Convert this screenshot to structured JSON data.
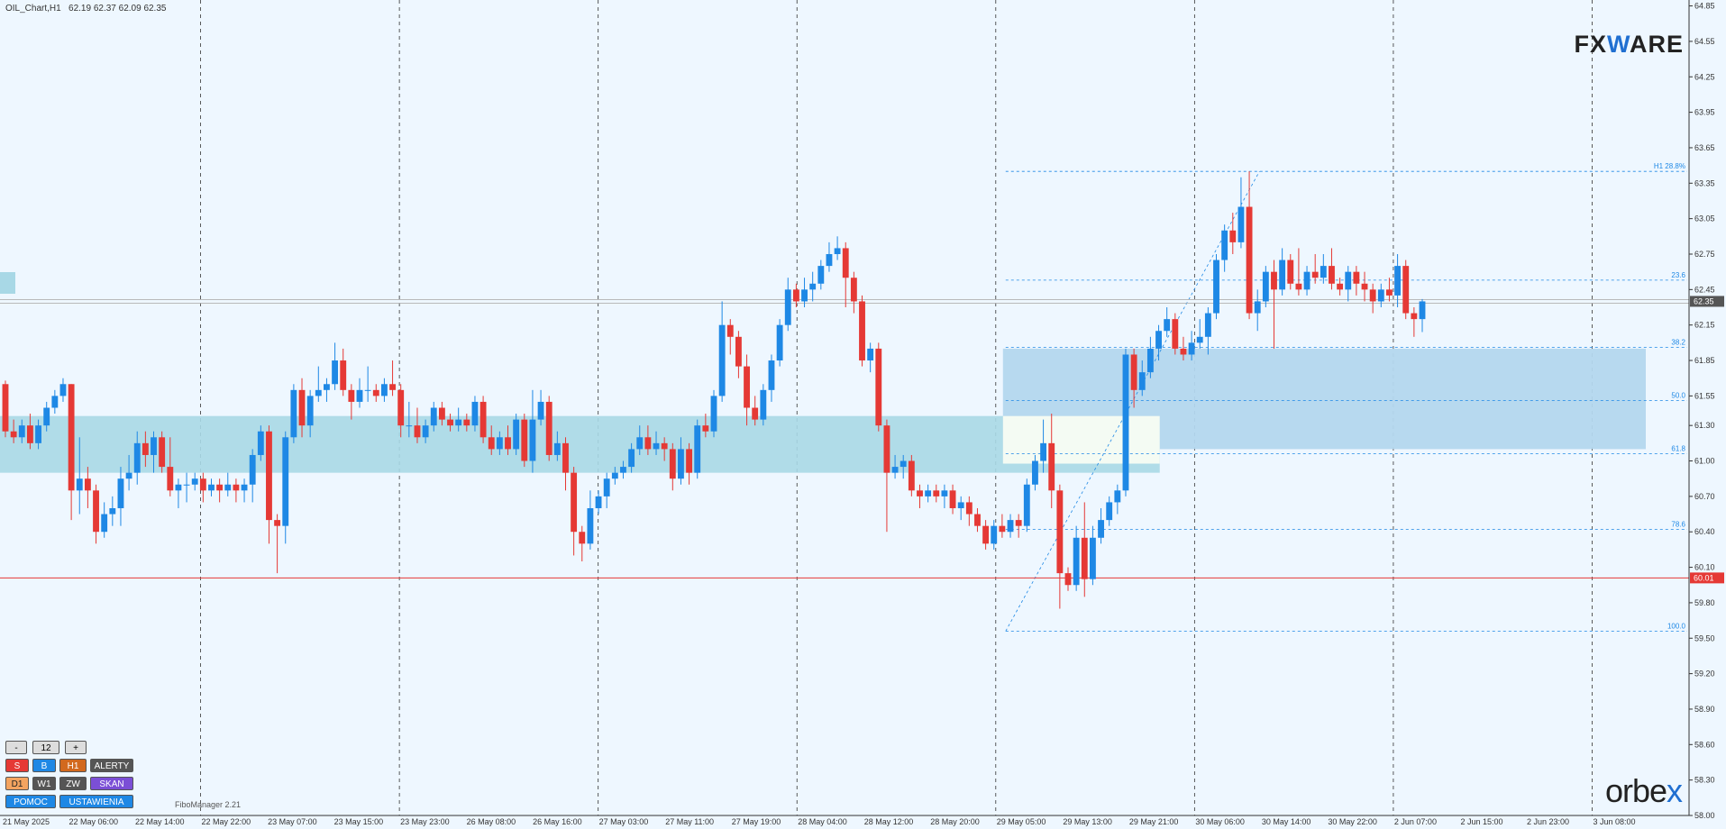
{
  "header": {
    "ohlc": "OIL_Chart,H1   62.19 62.37 62.09 62.35"
  },
  "brand": {
    "fxware_a": "FX",
    "fxware_b": "W",
    "fxware_c": "ARE",
    "orbex_a": "orbe",
    "orbex_b": "x"
  },
  "indicator_name": "FiboManager 2.21",
  "panel": {
    "minus": "-",
    "period": "12",
    "plus": "+",
    "s": "S",
    "b": "B",
    "h1": "H1",
    "alerty": "ALERTY",
    "d1": "D1",
    "w1": "W1",
    "zw": "ZW",
    "skan": "SKAN",
    "pomoc": "POMOC",
    "ustawienia": "USTAWIENIA"
  },
  "colors": {
    "bull": "#1e88e5",
    "bear": "#e53935",
    "zone": "#a8d8e6",
    "fibzone": "#b3d7ee",
    "hline": "#e53935"
  },
  "chart_data": {
    "type": "candlestick",
    "symbol": "OIL_Chart",
    "timeframe": "H1",
    "ylim": [
      58.0,
      64.9
    ],
    "yticks": [
      64.85,
      64.55,
      64.25,
      63.95,
      63.65,
      63.35,
      63.05,
      62.75,
      62.45,
      62.15,
      61.85,
      61.55,
      61.3,
      61.0,
      60.7,
      60.4,
      60.1,
      59.8,
      59.5,
      59.2,
      58.9,
      58.6,
      58.3,
      58.0
    ],
    "ytick_labels": [
      "64.85",
      "64.55",
      "64.25",
      "63.95",
      "63.65",
      "63.35",
      "63.05",
      "62.75",
      "62.45",
      "62.15",
      "61.85",
      "61.55",
      "61.30",
      "61.00",
      "60.70",
      "60.40",
      "60.10",
      "59.80",
      "59.50",
      "59.20",
      "58.90",
      "58.60",
      "58.30",
      "58.00"
    ],
    "xtick_labels": [
      "21 May 2025",
      "22 May 06:00",
      "22 May 14:00",
      "22 May 22:00",
      "23 May 07:00",
      "23 May 15:00",
      "23 May 23:00",
      "26 May 08:00",
      "26 May 16:00",
      "27 May 03:00",
      "27 May 11:00",
      "27 May 19:00",
      "28 May 04:00",
      "28 May 12:00",
      "28 May 20:00",
      "29 May 05:00",
      "29 May 13:00",
      "29 May 21:00",
      "30 May 06:00",
      "30 May 14:00",
      "30 May 22:00",
      "2 Jun 07:00",
      "2 Jun 15:00",
      "2 Jun 23:00",
      "3 Jun 08:00"
    ],
    "last_price": {
      "value": 62.35,
      "label": "62.35"
    },
    "horizontal_line": {
      "value": 60.01,
      "label": "60.01"
    },
    "zones": [
      {
        "from": 60.9,
        "to": 61.38
      },
      {
        "from": 61.1,
        "to": 61.95
      }
    ],
    "fib_levels": [
      {
        "label": "H1 28.8%",
        "value": 63.45
      },
      {
        "label": "23.6",
        "value": 62.53
      },
      {
        "label": "38.2",
        "value": 61.96
      },
      {
        "label": "50.0",
        "value": 61.51
      },
      {
        "label": "61.8",
        "value": 61.06
      },
      {
        "label": "78.6",
        "value": 60.42
      },
      {
        "label": "100.0",
        "value": 59.56
      }
    ],
    "candles": [
      [
        61.65,
        61.25,
        61.68,
        61.2
      ],
      [
        61.25,
        61.2,
        61.35,
        61.15
      ],
      [
        61.2,
        61.3,
        61.35,
        61.15
      ],
      [
        61.3,
        61.15,
        61.4,
        61.1
      ],
      [
        61.15,
        61.3,
        61.35,
        61.1
      ],
      [
        61.3,
        61.45,
        61.5,
        61.25
      ],
      [
        61.45,
        61.55,
        61.6,
        61.4
      ],
      [
        61.55,
        61.65,
        61.7,
        61.5
      ],
      [
        61.65,
        60.75,
        61.65,
        60.5
      ],
      [
        60.75,
        60.85,
        61.2,
        60.55
      ],
      [
        60.85,
        60.75,
        60.95,
        60.6
      ],
      [
        60.75,
        60.4,
        60.8,
        60.3
      ],
      [
        60.4,
        60.55,
        60.65,
        60.35
      ],
      [
        60.55,
        60.6,
        60.7,
        60.45
      ],
      [
        60.6,
        60.85,
        60.95,
        60.45
      ],
      [
        60.85,
        60.9,
        61.05,
        60.75
      ],
      [
        60.9,
        61.15,
        61.25,
        60.8
      ],
      [
        61.15,
        61.05,
        61.25,
        60.95
      ],
      [
        61.05,
        61.2,
        61.25,
        60.9
      ],
      [
        61.2,
        60.95,
        61.25,
        60.9
      ],
      [
        60.95,
        60.75,
        61.2,
        60.7
      ],
      [
        60.75,
        60.8,
        60.85,
        60.6
      ],
      [
        60.8,
        60.8,
        60.9,
        60.65
      ],
      [
        60.8,
        60.85,
        60.9,
        60.75
      ],
      [
        60.85,
        60.75,
        60.9,
        60.65
      ],
      [
        60.75,
        60.8,
        60.85,
        60.7
      ],
      [
        60.8,
        60.75,
        60.85,
        60.65
      ],
      [
        60.75,
        60.8,
        60.9,
        60.7
      ],
      [
        60.8,
        60.75,
        60.85,
        60.65
      ],
      [
        60.75,
        60.8,
        60.85,
        60.65
      ],
      [
        60.8,
        61.05,
        61.1,
        60.65
      ],
      [
        61.05,
        61.25,
        61.3,
        61.0
      ],
      [
        61.25,
        60.5,
        61.3,
        60.3
      ],
      [
        60.5,
        60.45,
        60.55,
        60.05
      ],
      [
        60.45,
        61.2,
        61.25,
        60.3
      ],
      [
        61.2,
        61.6,
        61.65,
        61.15
      ],
      [
        61.6,
        61.3,
        61.7,
        61.2
      ],
      [
        61.3,
        61.55,
        61.6,
        61.2
      ],
      [
        61.55,
        61.6,
        61.8,
        61.5
      ],
      [
        61.6,
        61.65,
        61.7,
        61.5
      ],
      [
        61.65,
        61.85,
        62.0,
        61.6
      ],
      [
        61.85,
        61.6,
        61.95,
        61.55
      ],
      [
        61.6,
        61.5,
        61.65,
        61.35
      ],
      [
        61.5,
        61.6,
        61.7,
        61.45
      ],
      [
        61.6,
        61.6,
        61.8,
        61.5
      ],
      [
        61.6,
        61.55,
        61.65,
        61.5
      ],
      [
        61.55,
        61.65,
        61.7,
        61.5
      ],
      [
        61.65,
        61.6,
        61.85,
        61.55
      ],
      [
        61.6,
        61.3,
        61.65,
        61.2
      ],
      [
        61.3,
        61.3,
        61.5,
        61.2
      ],
      [
        61.3,
        61.2,
        61.45,
        61.15
      ],
      [
        61.2,
        61.3,
        61.35,
        61.15
      ],
      [
        61.3,
        61.45,
        61.5,
        61.25
      ],
      [
        61.45,
        61.35,
        61.5,
        61.3
      ],
      [
        61.35,
        61.3,
        61.4,
        61.25
      ],
      [
        61.3,
        61.35,
        61.45,
        61.25
      ],
      [
        61.35,
        61.3,
        61.4,
        61.25
      ],
      [
        61.3,
        61.5,
        61.55,
        61.25
      ],
      [
        61.5,
        61.2,
        61.55,
        61.15
      ],
      [
        61.2,
        61.1,
        61.3,
        61.05
      ],
      [
        61.1,
        61.2,
        61.25,
        61.05
      ],
      [
        61.2,
        61.1,
        61.3,
        61.05
      ],
      [
        61.1,
        61.35,
        61.4,
        61.05
      ],
      [
        61.35,
        61.0,
        61.4,
        60.95
      ],
      [
        61.0,
        61.35,
        61.6,
        60.9
      ],
      [
        61.35,
        61.5,
        61.6,
        61.3
      ],
      [
        61.5,
        61.05,
        61.55,
        61.0
      ],
      [
        61.05,
        61.15,
        61.25,
        61.0
      ],
      [
        61.15,
        60.9,
        61.2,
        60.75
      ],
      [
        60.9,
        60.4,
        60.95,
        60.2
      ],
      [
        60.4,
        60.3,
        60.45,
        60.15
      ],
      [
        60.3,
        60.6,
        60.75,
        60.25
      ],
      [
        60.6,
        60.7,
        60.75,
        60.55
      ],
      [
        60.7,
        60.85,
        60.9,
        60.6
      ],
      [
        60.85,
        60.9,
        60.95,
        60.8
      ],
      [
        60.9,
        60.95,
        61.0,
        60.85
      ],
      [
        60.95,
        61.1,
        61.15,
        60.9
      ],
      [
        61.1,
        61.2,
        61.3,
        61.05
      ],
      [
        61.2,
        61.1,
        61.3,
        61.05
      ],
      [
        61.1,
        61.15,
        61.25,
        61.05
      ],
      [
        61.15,
        61.1,
        61.2,
        61.0
      ],
      [
        61.1,
        60.85,
        61.15,
        60.75
      ],
      [
        60.85,
        61.1,
        61.2,
        60.8
      ],
      [
        61.1,
        60.9,
        61.15,
        60.8
      ],
      [
        60.9,
        61.3,
        61.35,
        60.85
      ],
      [
        61.3,
        61.25,
        61.4,
        61.2
      ],
      [
        61.25,
        61.55,
        61.6,
        61.2
      ],
      [
        61.55,
        62.15,
        62.35,
        61.5
      ],
      [
        62.15,
        62.05,
        62.2,
        61.9
      ],
      [
        62.05,
        61.8,
        62.1,
        61.7
      ],
      [
        61.8,
        61.45,
        61.9,
        61.3
      ],
      [
        61.45,
        61.35,
        61.55,
        61.3
      ],
      [
        61.35,
        61.6,
        61.65,
        61.3
      ],
      [
        61.6,
        61.85,
        61.9,
        61.5
      ],
      [
        61.85,
        62.15,
        62.2,
        61.8
      ],
      [
        62.15,
        62.45,
        62.55,
        62.1
      ],
      [
        62.45,
        62.35,
        62.5,
        62.3
      ],
      [
        62.35,
        62.45,
        62.55,
        62.3
      ],
      [
        62.45,
        62.5,
        62.6,
        62.35
      ],
      [
        62.5,
        62.65,
        62.7,
        62.45
      ],
      [
        62.65,
        62.75,
        62.85,
        62.6
      ],
      [
        62.75,
        62.8,
        62.9,
        62.7
      ],
      [
        62.8,
        62.55,
        62.85,
        62.3
      ],
      [
        62.55,
        62.35,
        62.6,
        62.25
      ],
      [
        62.35,
        61.85,
        62.4,
        61.8
      ],
      [
        61.85,
        61.95,
        62.0,
        61.75
      ],
      [
        61.95,
        61.3,
        62.0,
        61.25
      ],
      [
        61.3,
        60.9,
        61.35,
        60.4
      ],
      [
        60.9,
        60.95,
        61.05,
        60.85
      ],
      [
        60.95,
        61.0,
        61.05,
        60.85
      ],
      [
        61.0,
        60.75,
        61.05,
        60.7
      ],
      [
        60.75,
        60.7,
        60.8,
        60.6
      ],
      [
        60.7,
        60.75,
        60.8,
        60.65
      ],
      [
        60.75,
        60.7,
        60.8,
        60.65
      ],
      [
        60.7,
        60.75,
        60.8,
        60.6
      ],
      [
        60.75,
        60.6,
        60.8,
        60.55
      ],
      [
        60.6,
        60.65,
        60.7,
        60.5
      ],
      [
        60.65,
        60.55,
        60.7,
        60.45
      ],
      [
        60.55,
        60.45,
        60.6,
        60.4
      ],
      [
        60.45,
        60.3,
        60.5,
        60.25
      ],
      [
        60.3,
        60.45,
        60.5,
        60.25
      ],
      [
        60.45,
        60.4,
        60.55,
        60.35
      ],
      [
        60.4,
        60.5,
        60.55,
        60.35
      ],
      [
        60.5,
        60.45,
        60.55,
        60.35
      ],
      [
        60.45,
        60.8,
        60.85,
        60.4
      ],
      [
        60.8,
        61.0,
        61.05,
        60.75
      ],
      [
        61.0,
        61.15,
        61.35,
        60.9
      ],
      [
        61.15,
        60.75,
        61.4,
        60.6
      ],
      [
        60.75,
        60.05,
        60.8,
        59.75
      ],
      [
        60.05,
        59.95,
        60.1,
        59.9
      ],
      [
        59.95,
        60.35,
        60.45,
        59.9
      ],
      [
        60.35,
        60.0,
        60.65,
        59.85
      ],
      [
        60.0,
        60.35,
        60.45,
        59.95
      ],
      [
        60.35,
        60.5,
        60.6,
        60.3
      ],
      [
        60.5,
        60.65,
        60.7,
        60.45
      ],
      [
        60.65,
        60.75,
        60.8,
        60.55
      ],
      [
        60.75,
        61.9,
        61.95,
        60.7
      ],
      [
        61.9,
        61.6,
        61.95,
        61.45
      ],
      [
        61.6,
        61.75,
        61.85,
        61.55
      ],
      [
        61.75,
        61.95,
        62.05,
        61.7
      ],
      [
        61.95,
        62.1,
        62.15,
        61.85
      ],
      [
        62.1,
        62.2,
        62.3,
        62.05
      ],
      [
        62.2,
        61.95,
        62.25,
        61.9
      ],
      [
        61.95,
        61.9,
        62.05,
        61.85
      ],
      [
        61.9,
        62.0,
        62.1,
        61.85
      ],
      [
        62.0,
        62.05,
        62.2,
        61.95
      ],
      [
        62.05,
        62.25,
        62.3,
        61.9
      ],
      [
        62.25,
        62.7,
        62.75,
        62.2
      ],
      [
        62.7,
        62.95,
        63.0,
        62.6
      ],
      [
        62.95,
        62.85,
        63.1,
        62.75
      ],
      [
        62.85,
        63.15,
        63.4,
        62.8
      ],
      [
        63.15,
        62.25,
        63.45,
        62.2
      ],
      [
        62.25,
        62.35,
        62.45,
        62.1
      ],
      [
        62.35,
        62.6,
        62.65,
        62.3
      ],
      [
        62.6,
        62.45,
        62.7,
        61.95
      ],
      [
        62.45,
        62.7,
        62.8,
        62.4
      ],
      [
        62.7,
        62.5,
        62.75,
        62.45
      ],
      [
        62.5,
        62.45,
        62.8,
        62.4
      ],
      [
        62.45,
        62.6,
        62.65,
        62.4
      ],
      [
        62.6,
        62.55,
        62.75,
        62.5
      ],
      [
        62.55,
        62.65,
        62.75,
        62.5
      ],
      [
        62.65,
        62.5,
        62.8,
        62.45
      ],
      [
        62.5,
        62.45,
        62.55,
        62.4
      ],
      [
        62.45,
        62.6,
        62.65,
        62.35
      ],
      [
        62.6,
        62.5,
        62.65,
        62.4
      ],
      [
        62.5,
        62.45,
        62.6,
        62.35
      ],
      [
        62.45,
        62.35,
        62.5,
        62.25
      ],
      [
        62.35,
        62.45,
        62.5,
        62.3
      ],
      [
        62.45,
        62.4,
        62.55,
        62.35
      ],
      [
        62.4,
        62.65,
        62.75,
        62.3
      ],
      [
        62.65,
        62.25,
        62.7,
        62.2
      ],
      [
        62.25,
        62.2,
        62.3,
        62.05
      ],
      [
        62.2,
        62.35,
        62.37,
        62.09
      ]
    ]
  }
}
